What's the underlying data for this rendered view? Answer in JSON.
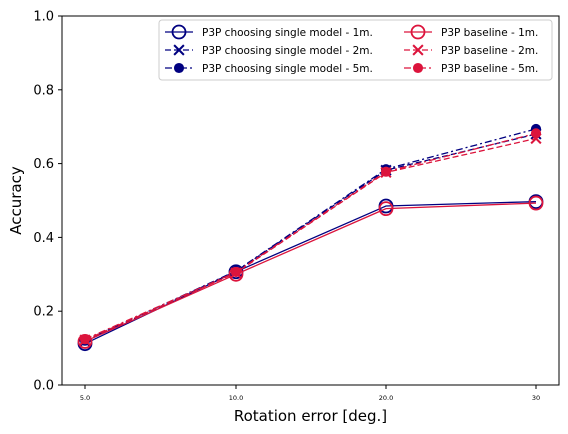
{
  "chart_data": {
    "type": "line",
    "xlabel": "Rotation error [deg.]",
    "ylabel": "Accuracy",
    "ylim": [
      0.0,
      1.0
    ],
    "categories": [
      "5.0",
      "10.0",
      "20.0",
      "30"
    ],
    "y_ticks": [
      "0.0",
      "0.2",
      "0.4",
      "0.6",
      "0.8",
      "1.0"
    ],
    "grid": false,
    "legend": {
      "placement": "top-right",
      "columns": 2
    },
    "series": [
      {
        "name": "P3P choosing single model - 1m.",
        "color": "#000080",
        "line": "solid",
        "marker": "open-circle",
        "values": [
          0.112,
          0.307,
          0.485,
          0.497
        ]
      },
      {
        "name": "P3P choosing single model - 2m.",
        "color": "#000080",
        "line": "dashed",
        "marker": "x",
        "values": [
          0.118,
          0.308,
          0.582,
          0.68
        ]
      },
      {
        "name": "P3P choosing single model - 5m.",
        "color": "#000080",
        "line": "dashdot",
        "marker": "filled-circle",
        "values": [
          0.12,
          0.309,
          0.585,
          0.694
        ]
      },
      {
        "name": "P3P baseline - 1m.",
        "color": "#dc143c",
        "line": "solid",
        "marker": "open-circle",
        "values": [
          0.118,
          0.3,
          0.478,
          0.493
        ]
      },
      {
        "name": "P3P baseline - 2m.",
        "color": "#dc143c",
        "line": "dashed",
        "marker": "x",
        "values": [
          0.122,
          0.304,
          0.576,
          0.668
        ]
      },
      {
        "name": "P3P baseline - 5m.",
        "color": "#dc143c",
        "line": "dashdot",
        "marker": "filled-circle",
        "values": [
          0.124,
          0.306,
          0.578,
          0.682
        ]
      }
    ]
  }
}
